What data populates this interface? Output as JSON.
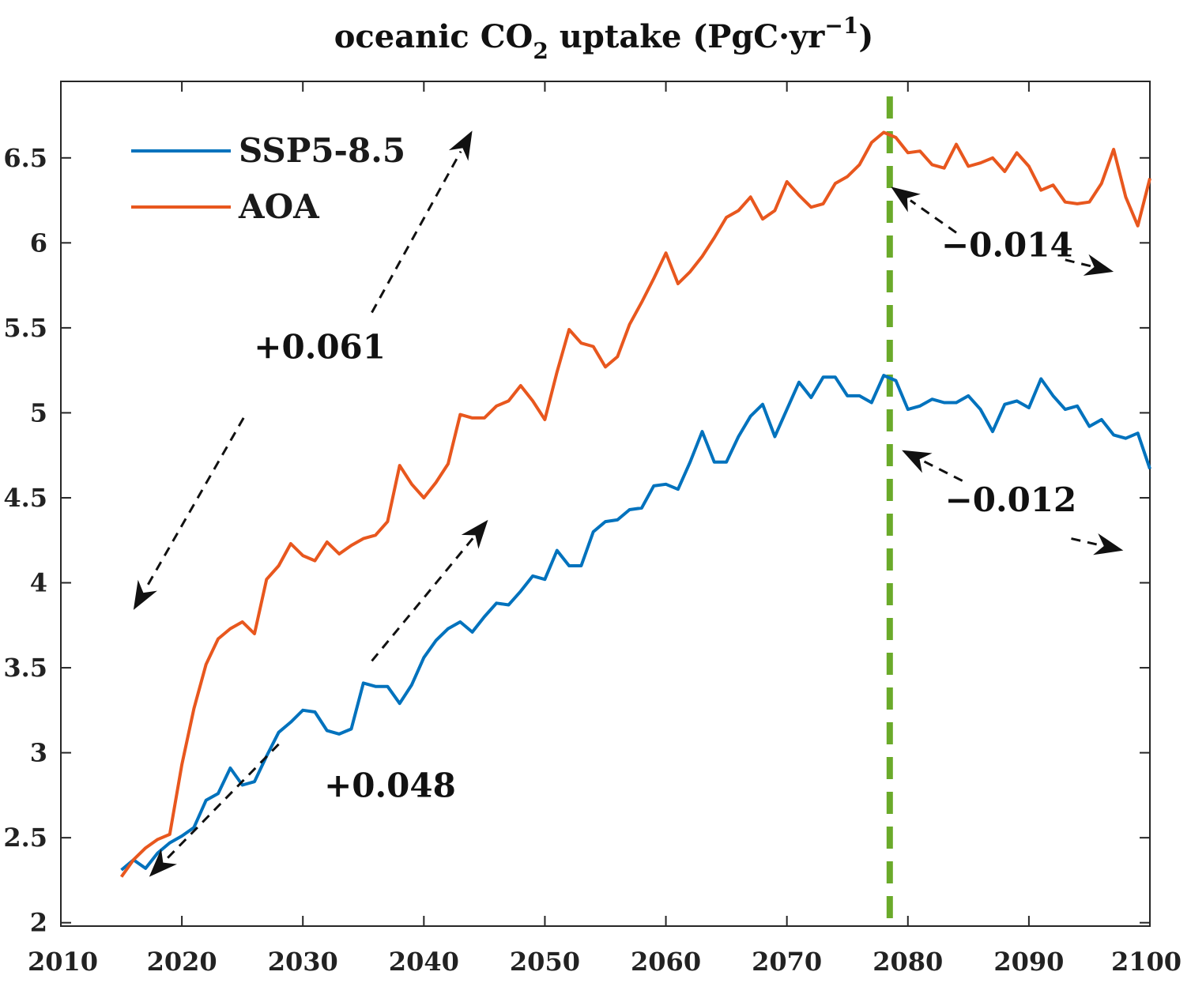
{
  "chart_data": {
    "type": "line",
    "title": "oceanic CO",
    "title_sub": "2",
    "title_rest": " uptake (PgC·yr",
    "title_sup": "−1",
    "title_end": ")",
    "xlabel": "",
    "ylabel": "",
    "xlim": [
      2010,
      2100
    ],
    "ylim": [
      1.98,
      6.95
    ],
    "x_ticks": [
      2010,
      2020,
      2030,
      2040,
      2050,
      2060,
      2070,
      2080,
      2090,
      2100
    ],
    "x_tick_labels": [
      "2010",
      "2020",
      "2030",
      "2040",
      "2050",
      "2060",
      "2070",
      "2080",
      "2090",
      "2100"
    ],
    "y_ticks": [
      2,
      2.5,
      3,
      3.5,
      4,
      4.5,
      5,
      5.5,
      6,
      6.5
    ],
    "y_tick_labels": [
      "2",
      "2.5",
      "3",
      "3.5",
      "4",
      "4.5",
      "5",
      "5.5",
      "6",
      "6.5"
    ],
    "legend": {
      "placement": "top-left",
      "entries": [
        "SSP5-8.5",
        "AOA"
      ]
    },
    "vertical_line": {
      "x": 2078.5,
      "color": "#6aaa2a",
      "style": "dashed"
    },
    "colors": {
      "ssp": "#0072bd",
      "aoa": "#e8571e",
      "arrow": "#111111",
      "axis": "#262626"
    },
    "x": [
      2015,
      2016,
      2017,
      2018,
      2019,
      2020,
      2021,
      2022,
      2023,
      2024,
      2025,
      2026,
      2027,
      2028,
      2029,
      2030,
      2031,
      2032,
      2033,
      2034,
      2035,
      2036,
      2037,
      2038,
      2039,
      2040,
      2041,
      2042,
      2043,
      2044,
      2045,
      2046,
      2047,
      2048,
      2049,
      2050,
      2051,
      2052,
      2053,
      2054,
      2055,
      2056,
      2057,
      2058,
      2059,
      2060,
      2061,
      2062,
      2063,
      2064,
      2065,
      2066,
      2067,
      2068,
      2069,
      2070,
      2071,
      2072,
      2073,
      2074,
      2075,
      2076,
      2077,
      2078,
      2079,
      2080,
      2081,
      2082,
      2083,
      2084,
      2085,
      2086,
      2087,
      2088,
      2089,
      2090,
      2091,
      2092,
      2093,
      2094,
      2095,
      2096,
      2097,
      2098,
      2099,
      2100
    ],
    "series": [
      {
        "name": "SSP5-8.5",
        "color": "#0072bd",
        "values": [
          2.31,
          2.37,
          2.32,
          2.41,
          2.47,
          2.51,
          2.56,
          2.72,
          2.76,
          2.91,
          2.81,
          2.83,
          2.98,
          3.12,
          3.18,
          3.25,
          3.24,
          3.13,
          3.11,
          3.14,
          3.41,
          3.39,
          3.39,
          3.29,
          3.4,
          3.56,
          3.66,
          3.73,
          3.77,
          3.71,
          3.8,
          3.88,
          3.87,
          3.95,
          4.04,
          4.02,
          4.19,
          4.1,
          4.1,
          4.3,
          4.36,
          4.37,
          4.43,
          4.44,
          4.57,
          4.58,
          4.55,
          4.71,
          4.89,
          4.71,
          4.71,
          4.86,
          4.98,
          5.05,
          4.86,
          5.02,
          5.18,
          5.09,
          5.21,
          5.21,
          5.1,
          5.1,
          5.06,
          5.22,
          5.19,
          5.02,
          5.04,
          5.08,
          5.06,
          5.06,
          5.1,
          5.02,
          4.89,
          5.05,
          5.07,
          5.03,
          5.2,
          5.1,
          5.02,
          5.04,
          4.92,
          4.96,
          4.87,
          4.85,
          4.88,
          4.67
        ]
      },
      {
        "name": "AOA",
        "color": "#e8571e",
        "values": [
          2.27,
          2.37,
          2.44,
          2.49,
          2.52,
          2.93,
          3.26,
          3.52,
          3.67,
          3.73,
          3.77,
          3.7,
          4.02,
          4.1,
          4.23,
          4.16,
          4.13,
          4.24,
          4.17,
          4.22,
          4.26,
          4.28,
          4.36,
          4.69,
          4.58,
          4.5,
          4.59,
          4.7,
          4.99,
          4.97,
          4.97,
          5.04,
          5.07,
          5.16,
          5.07,
          4.96,
          5.24,
          5.49,
          5.41,
          5.39,
          5.27,
          5.33,
          5.52,
          5.65,
          5.79,
          5.94,
          5.76,
          5.83,
          5.92,
          6.03,
          6.15,
          6.19,
          6.27,
          6.14,
          6.19,
          6.36,
          6.28,
          6.21,
          6.23,
          6.35,
          6.39,
          6.46,
          6.59,
          6.65,
          6.62,
          6.53,
          6.54,
          6.46,
          6.44,
          6.58,
          6.45,
          6.47,
          6.5,
          6.42,
          6.53,
          6.45,
          6.31,
          6.34,
          6.24,
          6.23,
          6.24,
          6.35,
          6.55,
          6.27,
          6.1,
          6.38
        ]
      }
    ],
    "annotations": [
      {
        "label": "+0.061",
        "x": 2031.4,
        "y": 5.32
      },
      {
        "label": "+0.048",
        "x": 2037.2,
        "y": 2.74
      },
      {
        "label": "−0.014",
        "x": 2088.2,
        "y": 5.92
      },
      {
        "label": "−0.012",
        "x": 2088.5,
        "y": 4.42
      }
    ],
    "arrows": [
      {
        "from": [
          2035.7,
          5.59
        ],
        "to": [
          2044.0,
          6.66
        ]
      },
      {
        "from": [
          2025.1,
          4.97
        ],
        "to": [
          2016.0,
          3.84
        ]
      },
      {
        "from": [
          2035.7,
          3.54
        ],
        "to": [
          2045.3,
          4.37
        ]
      },
      {
        "from": [
          2028.0,
          3.05
        ],
        "to": [
          2017.3,
          2.27
        ]
      },
      {
        "from": [
          2084.0,
          6.06
        ],
        "to": [
          2078.6,
          6.33
        ]
      },
      {
        "from": [
          2093.0,
          5.9
        ],
        "to": [
          2097.0,
          5.83
        ]
      },
      {
        "from": [
          2084.5,
          4.6
        ],
        "to": [
          2079.5,
          4.78
        ]
      },
      {
        "from": [
          2093.5,
          4.26
        ],
        "to": [
          2097.8,
          4.19
        ]
      }
    ]
  }
}
